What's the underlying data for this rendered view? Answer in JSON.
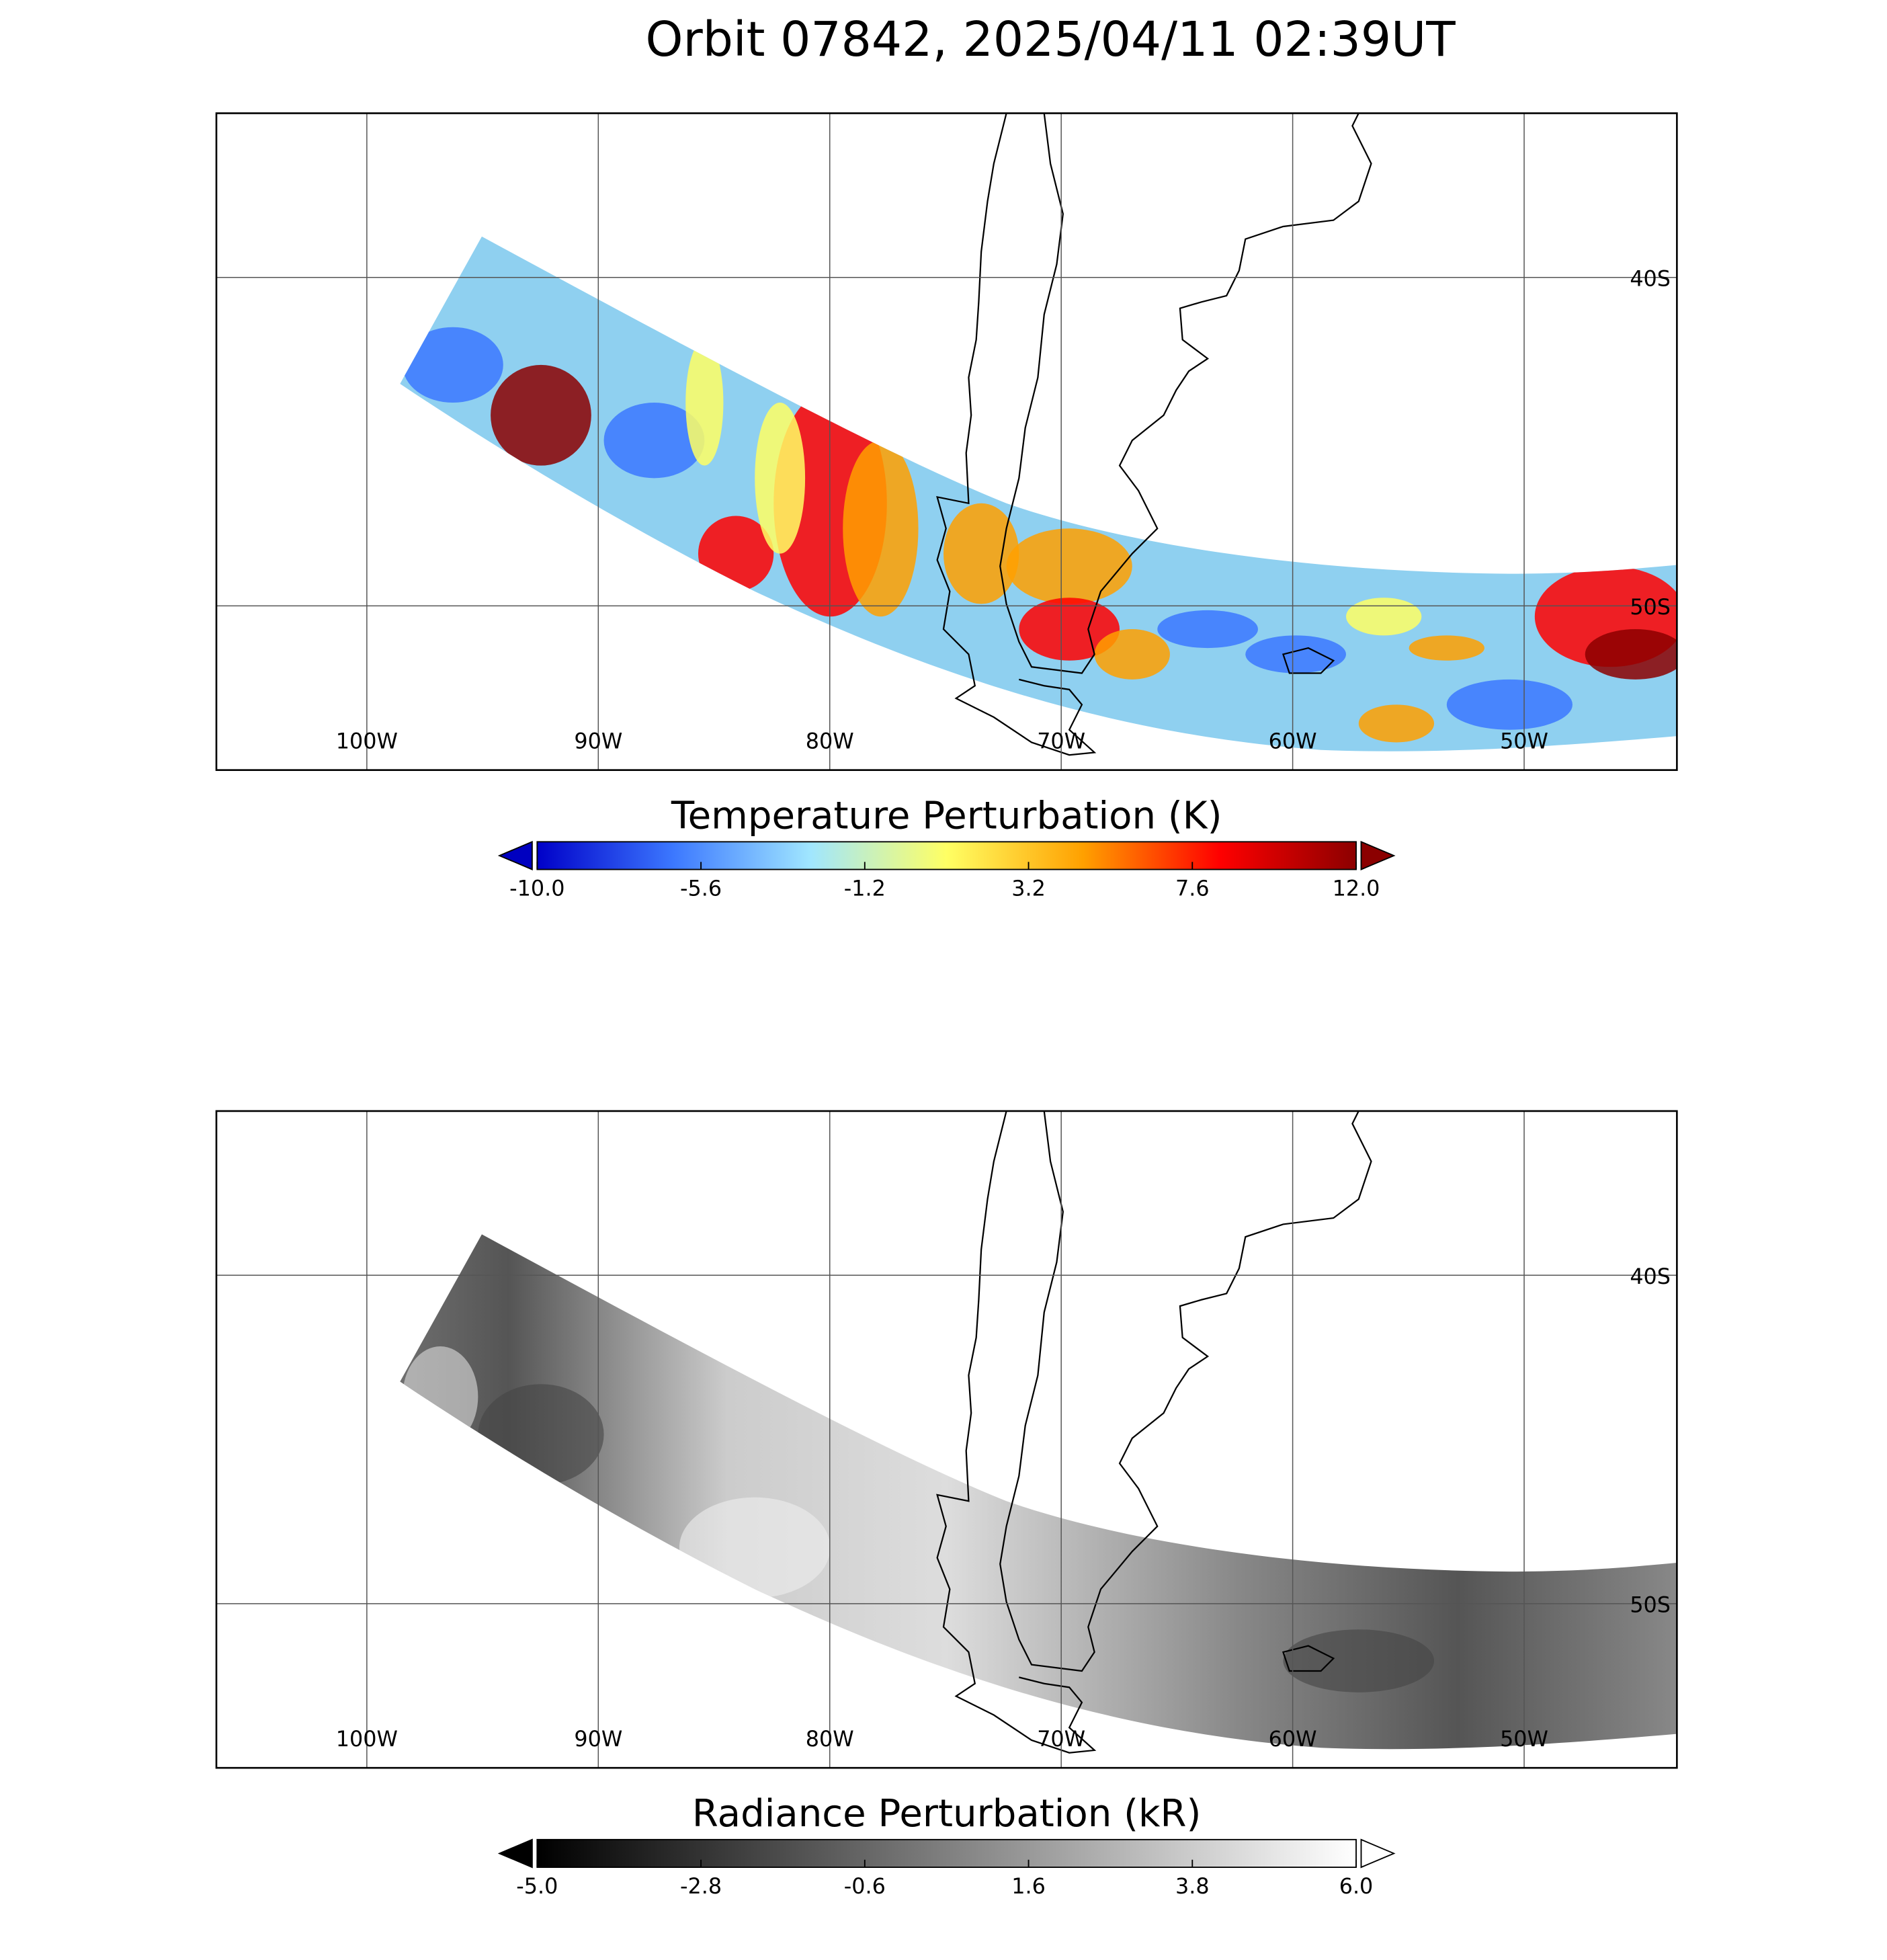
{
  "title": "Orbit 07842, 2025/04/11 02:39UT",
  "panels": [
    {
      "xlim": [
        -106.5,
        -43.4
      ],
      "ylim": [
        -55,
        -35
      ],
      "xticks": [
        {
          "value": -100,
          "label": "100W"
        },
        {
          "value": -90,
          "label": "90W"
        },
        {
          "value": -80,
          "label": "80W"
        },
        {
          "value": -70,
          "label": "70W"
        },
        {
          "value": -60,
          "label": "60W"
        },
        {
          "value": -50,
          "label": "50W"
        }
      ],
      "yticks": [
        {
          "value": -40,
          "label": "40S"
        },
        {
          "value": -50,
          "label": "50S"
        }
      ],
      "colorbar": {
        "label": "Temperature Perturbation (K)",
        "lim": [
          -10,
          12
        ],
        "ticks": [
          {
            "value": -10,
            "label": "-10.0"
          },
          -5.6,
          -1.2,
          3.2,
          7.6,
          {
            "value": 12,
            "label": "12.0"
          }
        ],
        "colors": [
          "#0000c8",
          "#3c78ff",
          "#a0e6ff",
          "#ffff64",
          "#ffa000",
          "#ff0000",
          "#8c0000"
        ],
        "under": "#0000c0",
        "over": "#8b0000"
      }
    },
    {
      "xlim": [
        -106.5,
        -43.4
      ],
      "ylim": [
        -55,
        -35
      ],
      "xticks": [
        {
          "value": -100,
          "label": "100W"
        },
        {
          "value": -90,
          "label": "90W"
        },
        {
          "value": -80,
          "label": "80W"
        },
        {
          "value": -70,
          "label": "70W"
        },
        {
          "value": -60,
          "label": "60W"
        },
        {
          "value": -50,
          "label": "50W"
        }
      ],
      "yticks": [
        {
          "value": -40,
          "label": "40S"
        },
        {
          "value": -50,
          "label": "50S"
        }
      ],
      "colorbar": {
        "label": "Radiance Perturbation (kR)",
        "lim": [
          -5,
          6
        ],
        "ticks": [
          {
            "value": -5,
            "label": "-5.0"
          },
          -2.8,
          -0.6,
          1.6,
          3.8,
          {
            "value": 6,
            "label": "6.0"
          }
        ],
        "colors": [
          "#000000",
          "#ffffff"
        ],
        "under": "#000000",
        "over": "#ffffff"
      }
    }
  ]
}
